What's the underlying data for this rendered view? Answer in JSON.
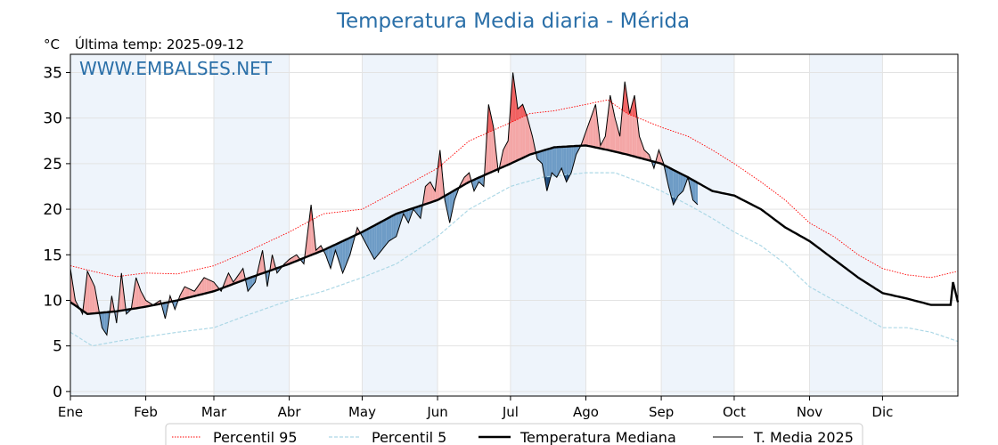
{
  "chart_data": {
    "type": "line",
    "title": "Temperatura Media diaria - Mérida",
    "ylabel": "°C",
    "subtitle": "Última temp: 2025-09-12",
    "watermark": "WWW.EMBALSES.NET",
    "ylim": [
      -0.5,
      37
    ],
    "xlim": [
      1,
      366
    ],
    "yticks": [
      0,
      5,
      10,
      15,
      20,
      25,
      30,
      35
    ],
    "grid": true,
    "legend_position": "bottom-center",
    "month_labels": [
      "Ene",
      "Feb",
      "Mar",
      "Abr",
      "May",
      "Jun",
      "Jul",
      "Ago",
      "Sep",
      "Oct",
      "Nov",
      "Dic"
    ],
    "month_starts": [
      1,
      32,
      60,
      91,
      121,
      152,
      182,
      213,
      244,
      274,
      305,
      335
    ],
    "shaded_months": [
      1,
      60,
      121,
      182,
      244,
      305
    ],
    "colors": {
      "p95": "#ff0000",
      "p5": "#add8e6",
      "median": "#000000",
      "current": "#000000",
      "above": "#f4a6a6",
      "above_extreme": "#f06060",
      "below": "#6e9cc6",
      "below_extreme": "#1e4a7a",
      "title": "#2a6fa8",
      "band": "#eef4fb"
    },
    "series": [
      {
        "name": "Percentil 95",
        "style": "dotted",
        "points": [
          [
            1,
            13.8
          ],
          [
            10,
            13.2
          ],
          [
            20,
            12.6
          ],
          [
            32,
            13.0
          ],
          [
            45,
            12.9
          ],
          [
            60,
            13.8
          ],
          [
            75,
            15.5
          ],
          [
            91,
            17.5
          ],
          [
            105,
            19.5
          ],
          [
            121,
            20.0
          ],
          [
            135,
            22.0
          ],
          [
            152,
            24.5
          ],
          [
            165,
            27.5
          ],
          [
            182,
            29.5
          ],
          [
            190,
            30.5
          ],
          [
            200,
            30.8
          ],
          [
            213,
            31.5
          ],
          [
            222,
            32.0
          ],
          [
            230,
            30.5
          ],
          [
            244,
            29.0
          ],
          [
            255,
            28.0
          ],
          [
            265,
            26.5
          ],
          [
            274,
            25.0
          ],
          [
            285,
            23.0
          ],
          [
            295,
            21.0
          ],
          [
            305,
            18.5
          ],
          [
            315,
            17.0
          ],
          [
            325,
            15.0
          ],
          [
            335,
            13.5
          ],
          [
            345,
            12.8
          ],
          [
            355,
            12.5
          ],
          [
            366,
            13.2
          ]
        ]
      },
      {
        "name": "Percentil 5",
        "style": "dashed",
        "points": [
          [
            1,
            6.5
          ],
          [
            10,
            5.0
          ],
          [
            20,
            5.5
          ],
          [
            32,
            6.0
          ],
          [
            45,
            6.5
          ],
          [
            60,
            7.0
          ],
          [
            75,
            8.5
          ],
          [
            91,
            10.0
          ],
          [
            105,
            11.0
          ],
          [
            121,
            12.5
          ],
          [
            135,
            14.0
          ],
          [
            152,
            17.0
          ],
          [
            165,
            20.0
          ],
          [
            182,
            22.5
          ],
          [
            195,
            23.5
          ],
          [
            213,
            24.0
          ],
          [
            225,
            24.0
          ],
          [
            235,
            23.0
          ],
          [
            244,
            22.0
          ],
          [
            255,
            20.5
          ],
          [
            265,
            19.0
          ],
          [
            274,
            17.5
          ],
          [
            285,
            16.0
          ],
          [
            295,
            14.0
          ],
          [
            305,
            11.5
          ],
          [
            315,
            10.0
          ],
          [
            325,
            8.5
          ],
          [
            335,
            7.0
          ],
          [
            345,
            7.0
          ],
          [
            355,
            6.5
          ],
          [
            366,
            5.5
          ]
        ]
      },
      {
        "name": "Temperatura Mediana",
        "style": "solid-thick",
        "points": [
          [
            1,
            9.8
          ],
          [
            8,
            8.5
          ],
          [
            20,
            8.8
          ],
          [
            32,
            9.3
          ],
          [
            45,
            10.0
          ],
          [
            60,
            11.0
          ],
          [
            75,
            12.5
          ],
          [
            91,
            14.0
          ],
          [
            105,
            15.5
          ],
          [
            121,
            17.5
          ],
          [
            135,
            19.5
          ],
          [
            152,
            21.0
          ],
          [
            165,
            23.0
          ],
          [
            182,
            25.0
          ],
          [
            190,
            26.0
          ],
          [
            200,
            26.8
          ],
          [
            213,
            27.0
          ],
          [
            222,
            26.5
          ],
          [
            230,
            26.0
          ],
          [
            244,
            25.0
          ],
          [
            255,
            23.5
          ],
          [
            265,
            22.0
          ],
          [
            274,
            21.5
          ],
          [
            285,
            20.0
          ],
          [
            295,
            18.0
          ],
          [
            305,
            16.5
          ],
          [
            315,
            14.5
          ],
          [
            325,
            12.5
          ],
          [
            335,
            10.8
          ],
          [
            345,
            10.2
          ],
          [
            355,
            9.5
          ],
          [
            363,
            9.5
          ],
          [
            364,
            12.0
          ],
          [
            366,
            9.8
          ]
        ]
      },
      {
        "name": "T. Media 2025",
        "style": "solid-thin",
        "points": [
          [
            1,
            13.5
          ],
          [
            3,
            10.0
          ],
          [
            6,
            8.5
          ],
          [
            8,
            13.2
          ],
          [
            11,
            11.5
          ],
          [
            14,
            7.0
          ],
          [
            16,
            6.2
          ],
          [
            18,
            10.5
          ],
          [
            20,
            7.5
          ],
          [
            22,
            13.0
          ],
          [
            24,
            8.5
          ],
          [
            26,
            9.0
          ],
          [
            28,
            12.5
          ],
          [
            30,
            11.0
          ],
          [
            32,
            10.0
          ],
          [
            35,
            9.5
          ],
          [
            38,
            10.0
          ],
          [
            40,
            8.0
          ],
          [
            42,
            10.5
          ],
          [
            44,
            9.0
          ],
          [
            46,
            10.5
          ],
          [
            48,
            11.5
          ],
          [
            52,
            11.0
          ],
          [
            56,
            12.5
          ],
          [
            60,
            12.0
          ],
          [
            63,
            11.0
          ],
          [
            66,
            13.0
          ],
          [
            68,
            12.0
          ],
          [
            72,
            13.5
          ],
          [
            74,
            11.0
          ],
          [
            77,
            12.0
          ],
          [
            80,
            15.5
          ],
          [
            82,
            11.5
          ],
          [
            84,
            15.0
          ],
          [
            86,
            13.0
          ],
          [
            89,
            14.0
          ],
          [
            91,
            14.5
          ],
          [
            94,
            15.0
          ],
          [
            97,
            14.0
          ],
          [
            100,
            20.5
          ],
          [
            102,
            15.5
          ],
          [
            104,
            16.0
          ],
          [
            106,
            15.0
          ],
          [
            108,
            13.5
          ],
          [
            110,
            15.5
          ],
          [
            113,
            13.0
          ],
          [
            116,
            15.0
          ],
          [
            119,
            18.0
          ],
          [
            121,
            17.0
          ],
          [
            123,
            16.0
          ],
          [
            126,
            14.5
          ],
          [
            129,
            15.5
          ],
          [
            132,
            16.5
          ],
          [
            135,
            17.0
          ],
          [
            138,
            19.5
          ],
          [
            140,
            18.5
          ],
          [
            142,
            20.0
          ],
          [
            145,
            19.0
          ],
          [
            147,
            22.5
          ],
          [
            149,
            23.0
          ],
          [
            151,
            22.0
          ],
          [
            153,
            26.5
          ],
          [
            155,
            21.0
          ],
          [
            157,
            18.5
          ],
          [
            159,
            21.0
          ],
          [
            161,
            22.5
          ],
          [
            163,
            23.5
          ],
          [
            165,
            24.0
          ],
          [
            167,
            22.0
          ],
          [
            169,
            23.0
          ],
          [
            171,
            22.5
          ],
          [
            173,
            31.5
          ],
          [
            175,
            29.0
          ],
          [
            177,
            24.0
          ],
          [
            179,
            26.5
          ],
          [
            181,
            27.5
          ],
          [
            183,
            35.0
          ],
          [
            185,
            31.0
          ],
          [
            187,
            31.5
          ],
          [
            189,
            30.0
          ],
          [
            191,
            28.0
          ],
          [
            193,
            25.5
          ],
          [
            195,
            25.0
          ],
          [
            197,
            22.0
          ],
          [
            199,
            24.0
          ],
          [
            201,
            23.5
          ],
          [
            203,
            24.5
          ],
          [
            205,
            23.0
          ],
          [
            207,
            24.0
          ],
          [
            209,
            26.0
          ],
          [
            211,
            27.0
          ],
          [
            213,
            28.5
          ],
          [
            215,
            30.0
          ],
          [
            217,
            31.5
          ],
          [
            219,
            27.0
          ],
          [
            221,
            28.0
          ],
          [
            223,
            32.5
          ],
          [
            225,
            30.0
          ],
          [
            227,
            28.0
          ],
          [
            229,
            34.0
          ],
          [
            231,
            30.5
          ],
          [
            233,
            32.5
          ],
          [
            235,
            28.0
          ],
          [
            237,
            26.5
          ],
          [
            239,
            26.0
          ],
          [
            241,
            24.5
          ],
          [
            243,
            26.5
          ],
          [
            245,
            25.0
          ],
          [
            247,
            22.5
          ],
          [
            249,
            20.5
          ],
          [
            251,
            21.5
          ],
          [
            253,
            22.0
          ],
          [
            255,
            23.5
          ],
          [
            257,
            21.0
          ],
          [
            259,
            20.5
          ]
        ]
      }
    ]
  }
}
